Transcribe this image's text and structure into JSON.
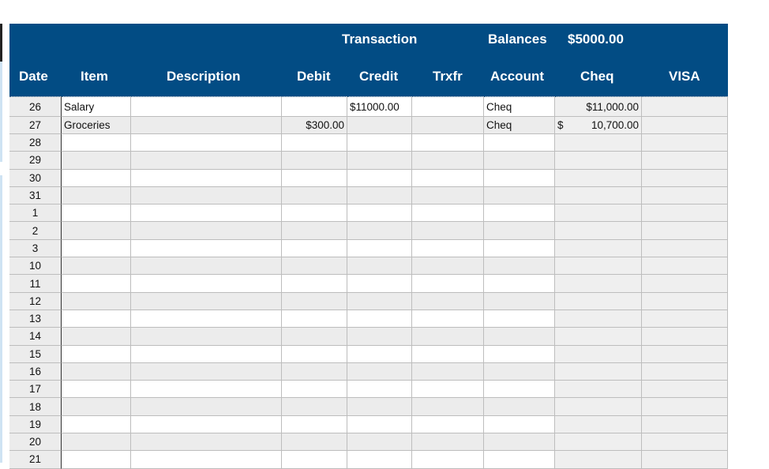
{
  "header": {
    "group_transaction": "Transaction",
    "group_balances": "Balances",
    "opening_balance": "$5000.00",
    "columns": [
      "Date",
      "Item",
      "Description",
      "Debit",
      "Credit",
      "Trxfr",
      "Account",
      "Cheq",
      "VISA"
    ]
  },
  "rows": [
    {
      "date": "26",
      "item": "Salary",
      "description": "",
      "debit": "",
      "credit": "$11000.00",
      "trxfr": "",
      "account": "Cheq",
      "cheq": "$11,000.00",
      "cheq_symbol": "",
      "visa": ""
    },
    {
      "date": "27",
      "item": "Groceries",
      "description": "",
      "debit": "$300.00",
      "credit": "",
      "trxfr": "",
      "account": "Cheq",
      "cheq": "10,700.00",
      "cheq_symbol": "$",
      "visa": ""
    },
    {
      "date": "28"
    },
    {
      "date": "29"
    },
    {
      "date": "30"
    },
    {
      "date": "31"
    },
    {
      "date": "1"
    },
    {
      "date": "2"
    },
    {
      "date": "3"
    },
    {
      "date": "10"
    },
    {
      "date": "11"
    },
    {
      "date": "12"
    },
    {
      "date": "13"
    },
    {
      "date": "14"
    },
    {
      "date": "15"
    },
    {
      "date": "16"
    },
    {
      "date": "17"
    },
    {
      "date": "18"
    },
    {
      "date": "19"
    },
    {
      "date": "20"
    },
    {
      "date": "21"
    }
  ],
  "colors": {
    "header_bg": "#024c84",
    "alt_row": "#ececec"
  }
}
